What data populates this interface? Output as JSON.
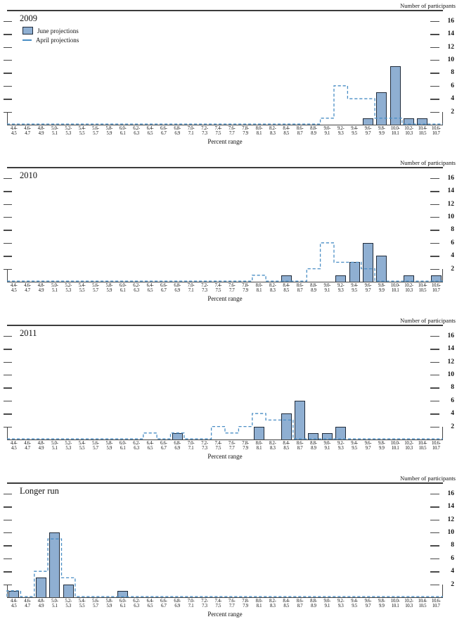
{
  "figure": {
    "right_axis_label": "Number of participants",
    "x_axis_label": "Percent range"
  },
  "legend": {
    "june_label": "June projections",
    "april_label": "April projections"
  },
  "colors": {
    "bar_fill": "#8fafd2",
    "bar_border": "#202b3a",
    "april_line": "#4a8ec5",
    "axis": "#3c3c3c"
  },
  "chart_data": {
    "type": "bar",
    "note": "Distribution of participants' projections; solid bars = June projections, dashed step line = April projections",
    "xlabel": "Percent range",
    "ylabel": "Number of participants",
    "ylim": [
      0,
      17.7
    ],
    "yticks": [
      2,
      4,
      6,
      8,
      10,
      12,
      14,
      16
    ],
    "bins": [
      "4.4-4.5",
      "4.6-4.7",
      "4.8-4.9",
      "5.0-5.1",
      "5.2-5.3",
      "5.4-5.5",
      "5.6-5.7",
      "5.8-5.9",
      "6.0-6.1",
      "6.2-6.3",
      "6.4-6.5",
      "6.6-6.7",
      "6.8-6.9",
      "7.0-7.1",
      "7.2-7.3",
      "7.4-7.5",
      "7.6-7.7",
      "7.8-7.9",
      "8.0-8.1",
      "8.2-8.3",
      "8.4-8.5",
      "8.6-8.7",
      "8.8-8.9",
      "9.0-9.1",
      "9.2-9.3",
      "9.4-9.5",
      "9.6-9.7",
      "9.8-9.9",
      "10.0-10.1",
      "10.2-10.3",
      "10.4-10.5",
      "10.6-10.7"
    ],
    "panels": [
      {
        "title": "2009",
        "june": {
          "9.6-9.7": 1,
          "9.8-9.9": 5,
          "10.0-10.1": 9,
          "10.2-10.3": 1,
          "10.4-10.5": 1
        },
        "april": {
          "9.0-9.1": 1,
          "9.2-9.3": 6,
          "9.4-9.5": 4,
          "9.6-9.7": 4,
          "9.8-9.9": 1,
          "10.0-10.1": 1
        }
      },
      {
        "title": "2010",
        "june": {
          "8.4-8.5": 1,
          "9.2-9.3": 1,
          "9.4-9.5": 3,
          "9.6-9.7": 6,
          "9.8-9.9": 4,
          "10.2-10.3": 1,
          "10.6-10.7": 1
        },
        "april": {
          "8.0-8.1": 1,
          "8.8-8.9": 2,
          "9.0-9.1": 6,
          "9.2-9.3": 3,
          "9.4-9.5": 3,
          "9.6-9.7": 2
        }
      },
      {
        "title": "2011",
        "june": {
          "6.8-6.9": 1,
          "8.0-8.1": 2,
          "8.4-8.5": 4,
          "8.6-8.7": 6,
          "8.8-8.9": 1,
          "9.0-9.1": 1,
          "9.2-9.3": 2
        },
        "april": {
          "6.4-6.5": 1,
          "6.8-6.9": 1,
          "7.4-7.5": 2,
          "7.6-7.7": 1,
          "7.8-7.9": 2,
          "8.0-8.1": 4,
          "8.2-8.3": 3,
          "8.4-8.5": 3
        }
      },
      {
        "title": "Longer run",
        "june": {
          "4.4-4.5": 1,
          "4.8-4.9": 3,
          "5.0-5.1": 10,
          "5.2-5.3": 2,
          "6.0-6.1": 1
        },
        "april": {
          "4.4-4.5": 1,
          "4.8-4.9": 4,
          "5.0-5.1": 9,
          "5.2-5.3": 3
        }
      }
    ]
  }
}
